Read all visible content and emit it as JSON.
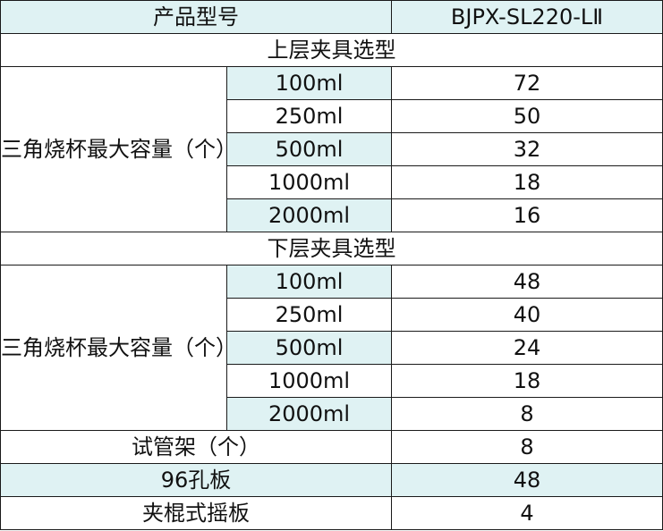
{
  "header": {
    "label": "产品型号",
    "model": "BJPX-SL220-LⅡ"
  },
  "upper": {
    "title": "上层夹具选型",
    "group_label": "三角烧杯最大容量（个）",
    "rows": [
      {
        "size": "100ml",
        "value": "72"
      },
      {
        "size": "250ml",
        "value": "50"
      },
      {
        "size": "500ml",
        "value": "32"
      },
      {
        "size": "1000ml",
        "value": "18"
      },
      {
        "size": "2000ml",
        "value": "16"
      }
    ]
  },
  "lower": {
    "title": "下层夹具选型",
    "group_label": "三角烧杯最大容量（个）",
    "rows": [
      {
        "size": "100ml",
        "value": "48"
      },
      {
        "size": "250ml",
        "value": "40"
      },
      {
        "size": "500ml",
        "value": "24"
      },
      {
        "size": "1000ml",
        "value": "18"
      },
      {
        "size": "2000ml",
        "value": "8"
      }
    ]
  },
  "extras": [
    {
      "label": "试管架（个）",
      "value": "8"
    },
    {
      "label": "96孔板",
      "value": "48"
    },
    {
      "label": "夹棍式摇板",
      "value": "4"
    }
  ],
  "colors": {
    "highlight": "#dff2f3",
    "border": "#1a1a1a",
    "text": "#111111"
  }
}
